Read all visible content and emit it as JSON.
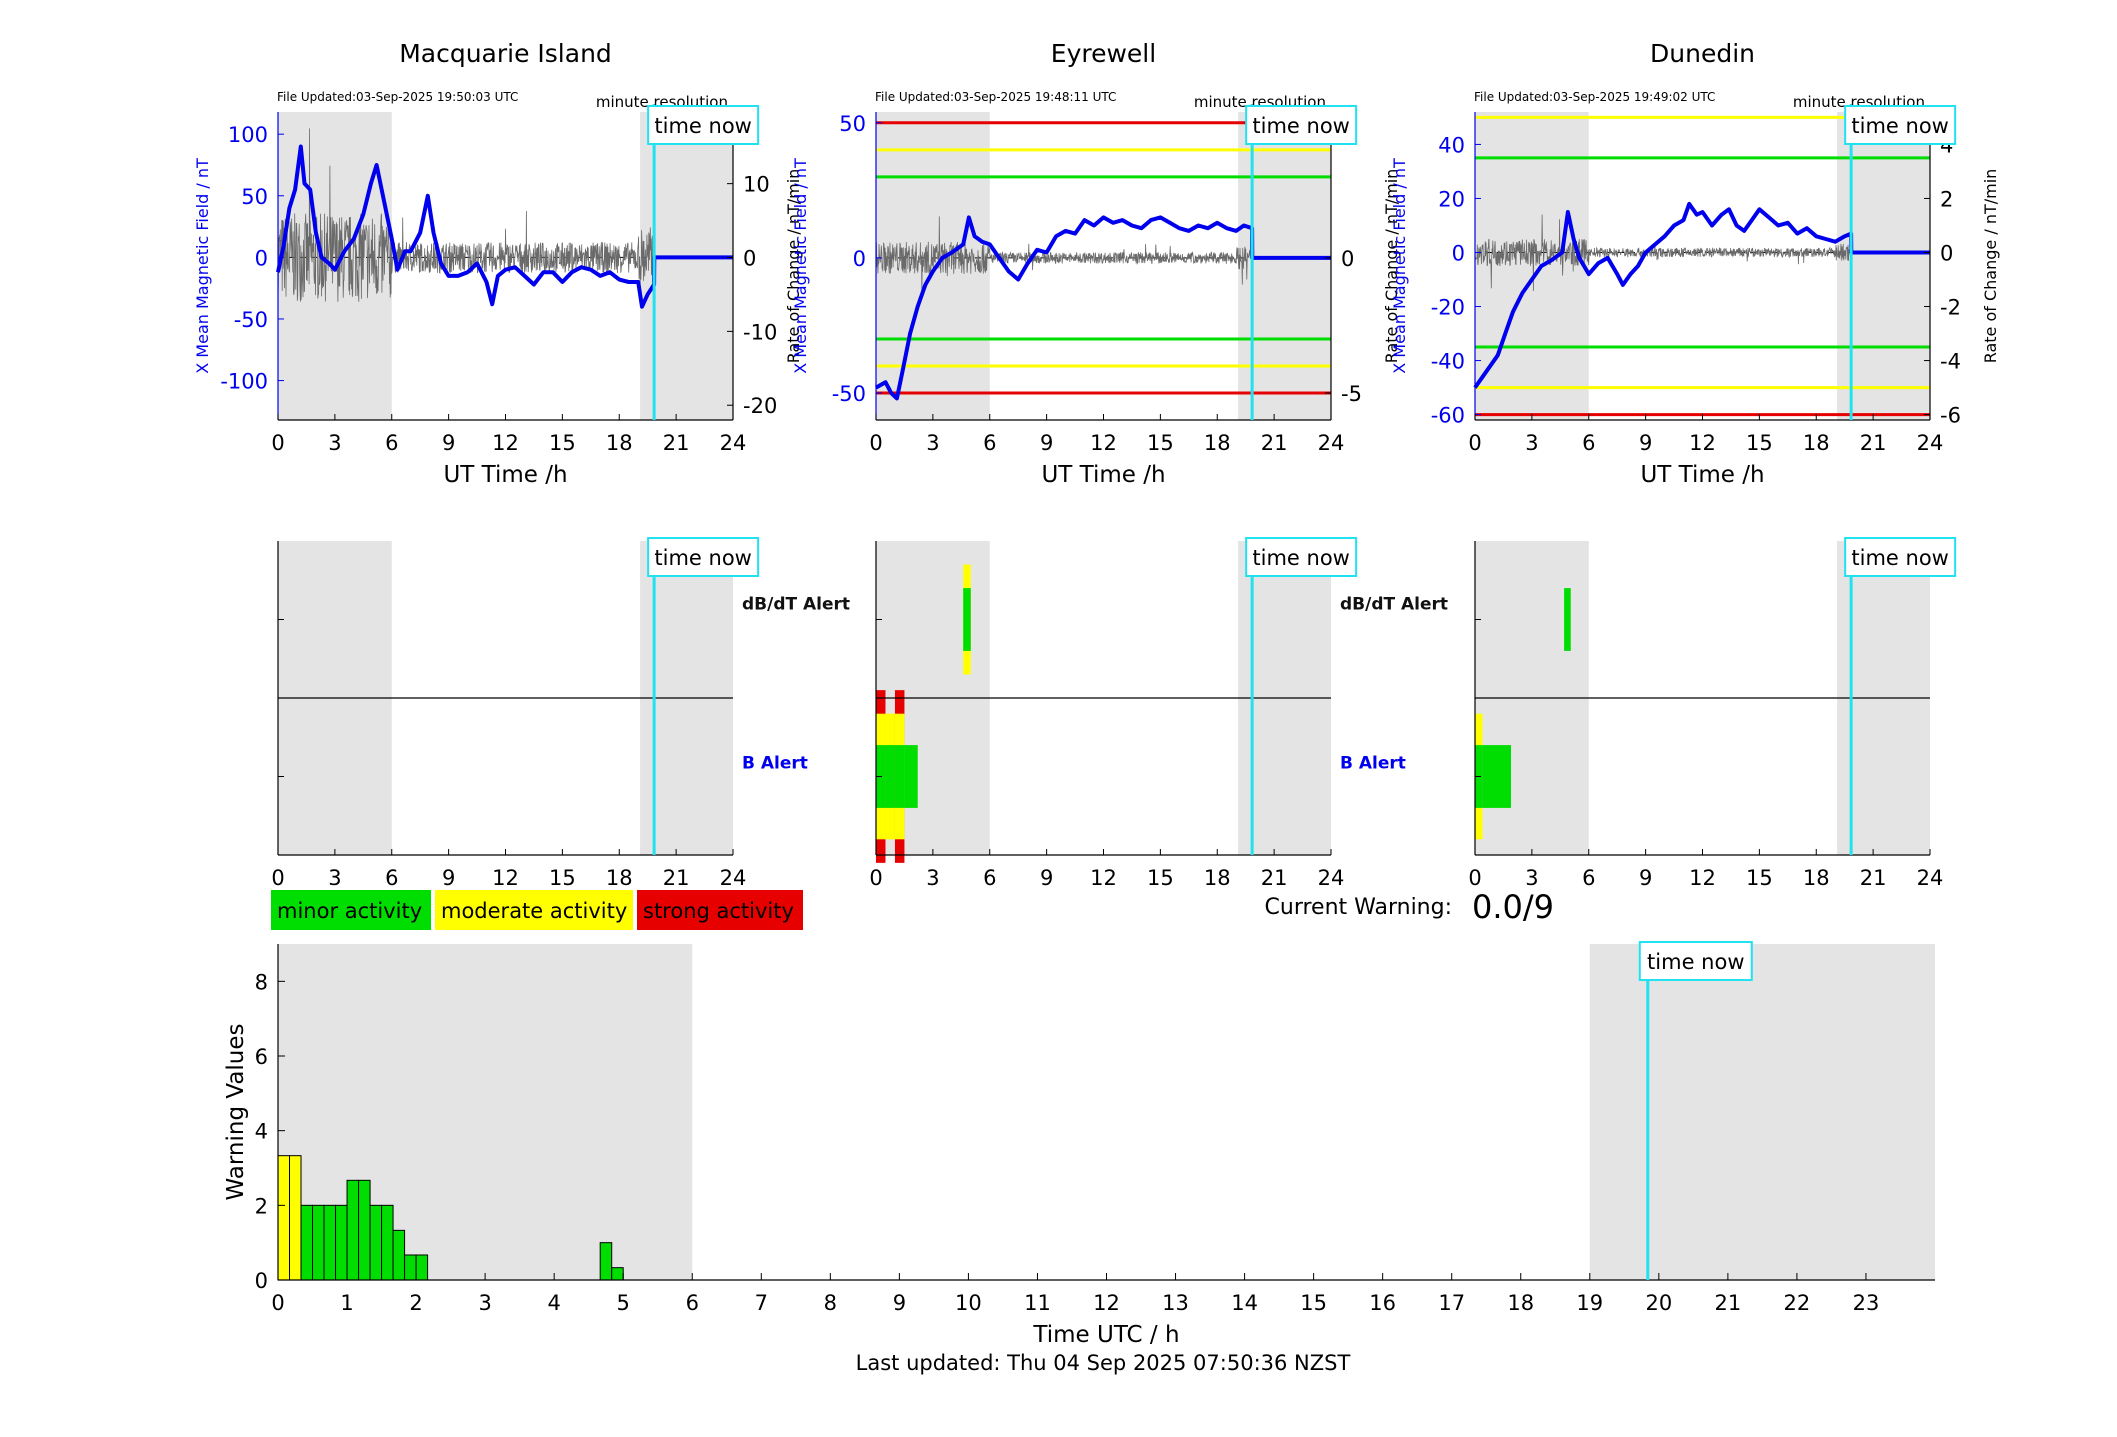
{
  "stations": [
    {
      "name": "Macquarie Island",
      "file_updated": "File Updated:03-Sep-2025 19:50:03 UTC",
      "resolution": "minute resolution",
      "time_now_label": "time now",
      "time_now_h": 19.84,
      "ylabel_left": "X Mean Magnetic Field / nT",
      "ylabel_right": "Rate of Change / nT/min",
      "xlabel": "UT Time /h",
      "ylim_left": [
        -132,
        118
      ],
      "yticks_left": [
        -100,
        -50,
        0,
        50,
        100
      ],
      "ylim_right": [
        -22,
        19.7
      ],
      "yticks_right": [
        -20,
        -10,
        0,
        10
      ],
      "threshold_lines": [],
      "field_trace": [
        [
          0,
          -12
        ],
        [
          0.3,
          10
        ],
        [
          0.6,
          40
        ],
        [
          0.9,
          55
        ],
        [
          1.2,
          90
        ],
        [
          1.4,
          60
        ],
        [
          1.7,
          55
        ],
        [
          2.0,
          20
        ],
        [
          2.3,
          0
        ],
        [
          2.7,
          -5
        ],
        [
          3.0,
          -10
        ],
        [
          3.5,
          5
        ],
        [
          4.0,
          15
        ],
        [
          4.5,
          35
        ],
        [
          4.9,
          60
        ],
        [
          5.2,
          75
        ],
        [
          5.6,
          45
        ],
        [
          6.0,
          15
        ],
        [
          6.3,
          -10
        ],
        [
          6.7,
          5
        ],
        [
          7.0,
          5
        ],
        [
          7.5,
          20
        ],
        [
          7.9,
          50
        ],
        [
          8.2,
          20
        ],
        [
          8.6,
          -5
        ],
        [
          9.0,
          -15
        ],
        [
          9.5,
          -15
        ],
        [
          10.0,
          -12
        ],
        [
          10.5,
          -5
        ],
        [
          11.0,
          -20
        ],
        [
          11.3,
          -38
        ],
        [
          11.6,
          -15
        ],
        [
          12.0,
          -10
        ],
        [
          12.5,
          -8
        ],
        [
          13.0,
          -15
        ],
        [
          13.5,
          -22
        ],
        [
          14.0,
          -12
        ],
        [
          14.5,
          -12
        ],
        [
          15.0,
          -20
        ],
        [
          15.5,
          -12
        ],
        [
          16.0,
          -8
        ],
        [
          16.5,
          -10
        ],
        [
          17.0,
          -15
        ],
        [
          17.5,
          -12
        ],
        [
          18.0,
          -18
        ],
        [
          18.5,
          -20
        ],
        [
          19.0,
          -20
        ],
        [
          19.2,
          -40
        ],
        [
          19.5,
          -30
        ],
        [
          19.84,
          -22
        ],
        [
          19.85,
          0
        ],
        [
          24,
          0
        ]
      ],
      "derivative_noise_amplitude": 6,
      "dbdt_alert_bars": [],
      "b_alert_bars": []
    },
    {
      "name": "Eyrewell",
      "file_updated": "File Updated:03-Sep-2025 19:48:11 UTC",
      "resolution": "minute resolution",
      "time_now_label": "time now",
      "time_now_h": 19.84,
      "ylabel_left": "X Mean Magnetic Field / nT",
      "ylabel_right": "Rate of Change / nT/min",
      "xlabel": "UT Time /h",
      "ylim_left": [
        -60,
        54
      ],
      "yticks_left": [
        -50,
        0,
        50
      ],
      "ylim_right": [
        -6,
        5.4
      ],
      "yticks_right": [
        -5,
        0,
        5
      ],
      "threshold_lines": [
        {
          "value": 50,
          "color": "#e60000"
        },
        {
          "value": 40,
          "color": "#ffff00"
        },
        {
          "value": 30,
          "color": "#00dd00"
        },
        {
          "value": -30,
          "color": "#00dd00"
        },
        {
          "value": -40,
          "color": "#ffff00"
        },
        {
          "value": -50,
          "color": "#e60000"
        }
      ],
      "field_trace": [
        [
          0,
          -48
        ],
        [
          0.5,
          -46
        ],
        [
          0.8,
          -50
        ],
        [
          1.1,
          -52
        ],
        [
          1.4,
          -42
        ],
        [
          1.8,
          -28
        ],
        [
          2.2,
          -18
        ],
        [
          2.6,
          -10
        ],
        [
          3.0,
          -5
        ],
        [
          3.5,
          0
        ],
        [
          4.0,
          2
        ],
        [
          4.6,
          5
        ],
        [
          4.9,
          15
        ],
        [
          5.2,
          8
        ],
        [
          5.6,
          6
        ],
        [
          6.0,
          5
        ],
        [
          6.5,
          0
        ],
        [
          7.0,
          -5
        ],
        [
          7.5,
          -8
        ],
        [
          8.0,
          -2
        ],
        [
          8.5,
          3
        ],
        [
          9.0,
          2
        ],
        [
          9.5,
          8
        ],
        [
          10.0,
          10
        ],
        [
          10.5,
          9
        ],
        [
          11.0,
          14
        ],
        [
          11.5,
          12
        ],
        [
          12.0,
          15
        ],
        [
          12.5,
          13
        ],
        [
          13.0,
          14
        ],
        [
          13.5,
          12
        ],
        [
          14.0,
          11
        ],
        [
          14.5,
          14
        ],
        [
          15.0,
          15
        ],
        [
          15.5,
          13
        ],
        [
          16.0,
          11
        ],
        [
          16.5,
          10
        ],
        [
          17.0,
          12
        ],
        [
          17.5,
          11
        ],
        [
          18.0,
          13
        ],
        [
          18.5,
          11
        ],
        [
          19.0,
          10
        ],
        [
          19.4,
          12
        ],
        [
          19.84,
          11
        ],
        [
          19.85,
          0
        ],
        [
          24,
          0
        ]
      ],
      "derivative_noise_amplitude": 0.6,
      "dbdt_alert_bars": [
        {
          "x0": 4.6,
          "x1": 5.0,
          "levels": [
            {
              "color": "#ffff00",
              "ymin": -0.35,
              "ymax": 0.35
            },
            {
              "color": "#00dd00",
              "ymin": -0.2,
              "ymax": 0.2
            }
          ]
        }
      ],
      "b_alert_bars": [
        {
          "x0": 0,
          "x1": 0.5,
          "levels": [
            {
              "color": "#e60000",
              "ymin": -0.55,
              "ymax": 0.55
            },
            {
              "color": "#ffff00",
              "ymin": -0.4,
              "ymax": 0.4
            },
            {
              "color": "#00dd00",
              "ymin": -0.2,
              "ymax": 0.2
            }
          ]
        },
        {
          "x0": 0.5,
          "x1": 1.0,
          "levels": [
            {
              "color": "#ffff00",
              "ymin": -0.4,
              "ymax": 0.4
            },
            {
              "color": "#00dd00",
              "ymin": -0.2,
              "ymax": 0.2
            }
          ]
        },
        {
          "x0": 1.0,
          "x1": 1.5,
          "levels": [
            {
              "color": "#e60000",
              "ymin": -0.55,
              "ymax": 0.55
            },
            {
              "color": "#ffff00",
              "ymin": -0.4,
              "ymax": 0.4
            },
            {
              "color": "#00dd00",
              "ymin": -0.2,
              "ymax": 0.2
            }
          ]
        },
        {
          "x0": 1.5,
          "x1": 2.2,
          "levels": [
            {
              "color": "#00dd00",
              "ymin": -0.2,
              "ymax": 0.2
            }
          ]
        }
      ]
    },
    {
      "name": "Dunedin",
      "file_updated": "File Updated:03-Sep-2025 19:49:02 UTC",
      "resolution": "minute resolution",
      "time_now_label": "time now",
      "time_now_h": 19.84,
      "ylabel_left": "X Mean Magnetic Field / nT",
      "ylabel_right": "Rate of Change / nT/min",
      "xlabel": "UT Time /h",
      "ylim_left": [
        -62,
        52
      ],
      "yticks_left": [
        -60,
        -40,
        -20,
        0,
        20,
        40
      ],
      "ylim_right": [
        -6.2,
        5.2
      ],
      "yticks_right": [
        -6,
        -4,
        -2,
        0,
        2,
        4
      ],
      "threshold_lines": [
        {
          "value": 50,
          "color": "#ffff00"
        },
        {
          "value": 35,
          "color": "#00dd00"
        },
        {
          "value": -35,
          "color": "#00dd00"
        },
        {
          "value": -50,
          "color": "#ffff00"
        },
        {
          "value": -60,
          "color": "#e60000"
        }
      ],
      "field_trace": [
        [
          0,
          -50
        ],
        [
          0.4,
          -46
        ],
        [
          0.8,
          -42
        ],
        [
          1.2,
          -38
        ],
        [
          1.6,
          -30
        ],
        [
          2.0,
          -22
        ],
        [
          2.5,
          -15
        ],
        [
          3.0,
          -10
        ],
        [
          3.5,
          -5
        ],
        [
          4.0,
          -3
        ],
        [
          4.6,
          0
        ],
        [
          4.9,
          15
        ],
        [
          5.2,
          5
        ],
        [
          5.5,
          -2
        ],
        [
          6.0,
          -8
        ],
        [
          6.5,
          -4
        ],
        [
          7.0,
          -2
        ],
        [
          7.5,
          -8
        ],
        [
          7.8,
          -12
        ],
        [
          8.2,
          -8
        ],
        [
          8.6,
          -5
        ],
        [
          9.0,
          0
        ],
        [
          9.5,
          3
        ],
        [
          10.0,
          6
        ],
        [
          10.5,
          10
        ],
        [
          11.0,
          12
        ],
        [
          11.3,
          18
        ],
        [
          11.7,
          14
        ],
        [
          12.0,
          15
        ],
        [
          12.5,
          10
        ],
        [
          13.0,
          14
        ],
        [
          13.4,
          16
        ],
        [
          13.8,
          10
        ],
        [
          14.2,
          8
        ],
        [
          14.6,
          12
        ],
        [
          15.0,
          16
        ],
        [
          15.5,
          13
        ],
        [
          16.0,
          10
        ],
        [
          16.5,
          11
        ],
        [
          17.0,
          7
        ],
        [
          17.5,
          9
        ],
        [
          18.0,
          6
        ],
        [
          18.5,
          5
        ],
        [
          19.0,
          4
        ],
        [
          19.5,
          6
        ],
        [
          19.84,
          7
        ],
        [
          19.85,
          0
        ],
        [
          24,
          0
        ]
      ],
      "derivative_noise_amplitude": 0.5,
      "dbdt_alert_bars": [
        {
          "x0": 4.7,
          "x1": 5.05,
          "levels": [
            {
              "color": "#00dd00",
              "ymin": -0.2,
              "ymax": 0.2
            }
          ]
        }
      ],
      "b_alert_bars": [
        {
          "x0": 0,
          "x1": 0.4,
          "levels": [
            {
              "color": "#ffff00",
              "ymin": -0.4,
              "ymax": 0.4
            },
            {
              "color": "#00dd00",
              "ymin": -0.2,
              "ymax": 0.2
            }
          ]
        },
        {
          "x0": 0.4,
          "x1": 1.9,
          "levels": [
            {
              "color": "#00dd00",
              "ymin": -0.2,
              "ymax": 0.2
            }
          ]
        }
      ]
    }
  ],
  "alert_rows": {
    "dbdt_label": "dB/dT Alert",
    "b_label": "B Alert",
    "x_ticks": [
      0,
      3,
      6,
      9,
      12,
      15,
      18,
      21,
      24
    ]
  },
  "legend": [
    {
      "label": "minor activity",
      "color": "#00dd00"
    },
    {
      "label": "moderate activity",
      "color": "#ffff00"
    },
    {
      "label": "strong activity",
      "color": "#e60000"
    }
  ],
  "current_warning": {
    "label": "Current Warning:",
    "value": "0.0/9"
  },
  "chart_data": {
    "type": "bar",
    "xlabel": "Time UTC / h",
    "ylabel": "Warning Values",
    "xlim": [
      0,
      24
    ],
    "ylim": [
      0,
      9
    ],
    "x_ticks": [
      0,
      1,
      2,
      3,
      4,
      5,
      6,
      7,
      8,
      9,
      10,
      11,
      12,
      13,
      14,
      15,
      16,
      17,
      18,
      19,
      20,
      21,
      22,
      23
    ],
    "y_ticks": [
      0,
      2,
      4,
      6,
      8
    ],
    "bar_width_h": 0.1667,
    "bars": [
      {
        "x": 0.0,
        "value": 3.33,
        "color": "#ffff00"
      },
      {
        "x": 0.1667,
        "value": 3.33,
        "color": "#ffff00"
      },
      {
        "x": 0.3333,
        "value": 2.0,
        "color": "#00dd00"
      },
      {
        "x": 0.5,
        "value": 2.0,
        "color": "#00dd00"
      },
      {
        "x": 0.6667,
        "value": 2.0,
        "color": "#00dd00"
      },
      {
        "x": 0.8333,
        "value": 2.0,
        "color": "#00dd00"
      },
      {
        "x": 1.0,
        "value": 2.67,
        "color": "#00dd00"
      },
      {
        "x": 1.1667,
        "value": 2.67,
        "color": "#00dd00"
      },
      {
        "x": 1.3333,
        "value": 2.0,
        "color": "#00dd00"
      },
      {
        "x": 1.5,
        "value": 2.0,
        "color": "#00dd00"
      },
      {
        "x": 1.6667,
        "value": 1.33,
        "color": "#00dd00"
      },
      {
        "x": 1.8333,
        "value": 0.67,
        "color": "#00dd00"
      },
      {
        "x": 2.0,
        "value": 0.67,
        "color": "#00dd00"
      },
      {
        "x": 4.6667,
        "value": 1.0,
        "color": "#00dd00"
      },
      {
        "x": 4.8333,
        "value": 0.33,
        "color": "#00dd00"
      }
    ],
    "night_shading": [
      [
        0,
        6
      ],
      [
        19,
        24
      ]
    ],
    "time_now_h": 19.84,
    "time_now_label": "time now"
  },
  "shading_hours": [
    [
      0,
      6
    ],
    [
      19.1,
      24
    ]
  ],
  "footer": "Last updated: Thu 04 Sep 2025 07:50:36 NZST"
}
